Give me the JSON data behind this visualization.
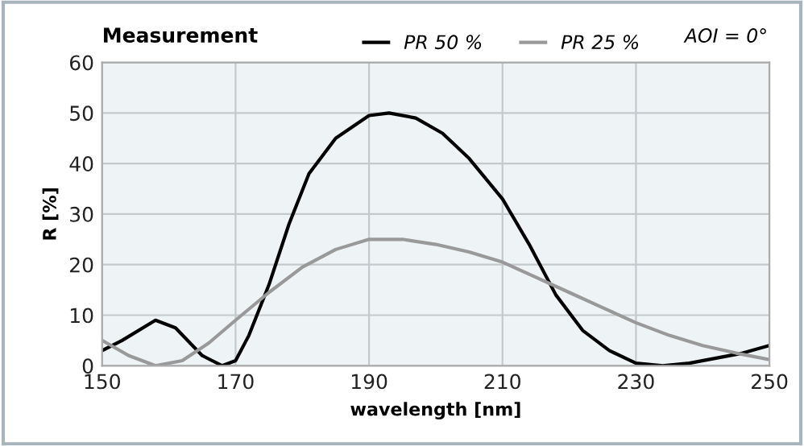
{
  "chart_data": {
    "type": "line",
    "title": "Measurement",
    "xlabel": "wavelength [nm]",
    "ylabel": "R [%]",
    "annotations": [
      "AOI = 0°"
    ],
    "xlim": [
      150,
      250
    ],
    "xticks": [
      150,
      170,
      190,
      210,
      230,
      250
    ],
    "ylim": [
      0,
      60
    ],
    "yticks": [
      0,
      10,
      20,
      30,
      40,
      50,
      60
    ],
    "grid": true,
    "legend": "top right",
    "marker": "none",
    "line_style": "solid",
    "series": [
      {
        "name": "PR 50 %",
        "color": "#000000",
        "x": [
          150,
          153,
          158,
          161,
          165,
          168,
          170,
          172,
          175,
          178,
          181,
          185,
          190,
          193,
          197,
          201,
          205,
          210,
          214,
          218,
          222,
          226,
          230,
          234,
          238,
          242,
          246,
          250
        ],
        "values": [
          3,
          5,
          9,
          7.5,
          2,
          0,
          1,
          6,
          16,
          28,
          38,
          45,
          49.5,
          50,
          49,
          46,
          41,
          33,
          24,
          14,
          7,
          3,
          0.5,
          0,
          0.5,
          1.5,
          2.5,
          4
        ]
      },
      {
        "name": "PR 25 %",
        "color": "#999999",
        "x": [
          150,
          154,
          158,
          162,
          166,
          170,
          175,
          180,
          185,
          190,
          195,
          200,
          205,
          210,
          215,
          220,
          225,
          230,
          235,
          240,
          245,
          250
        ],
        "values": [
          5,
          2,
          0,
          1,
          4.5,
          9,
          14.5,
          19.5,
          23,
          25,
          25,
          24,
          22.5,
          20.5,
          17.5,
          14.5,
          11.5,
          8.5,
          6,
          4,
          2.5,
          1.2
        ]
      }
    ]
  }
}
